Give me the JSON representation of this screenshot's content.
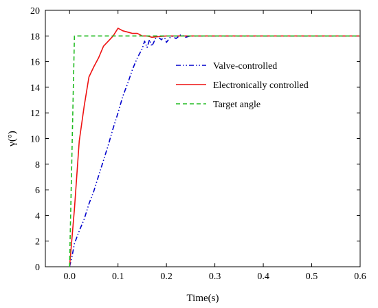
{
  "chart_data": {
    "type": "line",
    "title": "",
    "xlabel": "Time(s)",
    "ylabel": "γ(°)",
    "xlim": [
      -0.05,
      0.6
    ],
    "ylim": [
      0,
      20
    ],
    "xticks": [
      0.0,
      0.1,
      0.2,
      0.3,
      0.4,
      0.5,
      0.6
    ],
    "xtick_labels": [
      "0.0",
      "0.1",
      "0.2",
      "0.3",
      "0.4",
      "0.5",
      "0.6"
    ],
    "yticks": [
      0,
      2,
      4,
      6,
      8,
      10,
      12,
      14,
      16,
      18,
      20
    ],
    "ytick_labels": [
      "0",
      "2",
      "4",
      "6",
      "8",
      "10",
      "12",
      "14",
      "16",
      "18",
      "20"
    ],
    "grid": false,
    "legend_position": "upper-right",
    "series": [
      {
        "name": "Valve-controlled",
        "color": "#0000cc",
        "style": "dash-dot-dot",
        "points": [
          [
            0.0,
            0.0
          ],
          [
            0.005,
            0.8
          ],
          [
            0.01,
            1.8
          ],
          [
            0.02,
            2.8
          ],
          [
            0.03,
            3.7
          ],
          [
            0.04,
            4.9
          ],
          [
            0.05,
            5.9
          ],
          [
            0.06,
            7.1
          ],
          [
            0.07,
            8.3
          ],
          [
            0.08,
            9.5
          ],
          [
            0.09,
            10.8
          ],
          [
            0.1,
            12.0
          ],
          [
            0.11,
            13.3
          ],
          [
            0.12,
            14.3
          ],
          [
            0.13,
            15.4
          ],
          [
            0.14,
            16.3
          ],
          [
            0.15,
            17.0
          ],
          [
            0.155,
            17.6
          ],
          [
            0.16,
            17.1
          ],
          [
            0.165,
            17.7
          ],
          [
            0.17,
            17.2
          ],
          [
            0.18,
            18.0
          ],
          [
            0.19,
            17.7
          ],
          [
            0.195,
            18.0
          ],
          [
            0.2,
            17.5
          ],
          [
            0.21,
            18.0
          ],
          [
            0.22,
            17.8
          ],
          [
            0.23,
            18.1
          ],
          [
            0.24,
            17.9
          ],
          [
            0.25,
            18.0
          ],
          [
            0.3,
            18.0
          ],
          [
            0.4,
            18.0
          ],
          [
            0.5,
            18.0
          ],
          [
            0.6,
            18.0
          ]
        ]
      },
      {
        "name": "Electronically controlled",
        "color": "#ee1111",
        "style": "solid",
        "points": [
          [
            0.0,
            0.0
          ],
          [
            0.01,
            4.5
          ],
          [
            0.02,
            9.8
          ],
          [
            0.03,
            12.5
          ],
          [
            0.04,
            14.8
          ],
          [
            0.05,
            15.6
          ],
          [
            0.06,
            16.3
          ],
          [
            0.07,
            17.2
          ],
          [
            0.08,
            17.6
          ],
          [
            0.09,
            18.0
          ],
          [
            0.1,
            18.6
          ],
          [
            0.11,
            18.4
          ],
          [
            0.12,
            18.3
          ],
          [
            0.13,
            18.2
          ],
          [
            0.14,
            18.2
          ],
          [
            0.15,
            18.0
          ],
          [
            0.16,
            18.0
          ],
          [
            0.17,
            17.9
          ],
          [
            0.2,
            18.0
          ],
          [
            0.3,
            18.0
          ],
          [
            0.4,
            18.0
          ],
          [
            0.5,
            18.0
          ],
          [
            0.6,
            18.0
          ]
        ]
      },
      {
        "name": "Target angle",
        "color": "#22bb22",
        "style": "dashed",
        "points": [
          [
            0.0,
            0.0
          ],
          [
            0.01,
            18.0
          ],
          [
            0.6,
            18.0
          ]
        ]
      }
    ]
  }
}
